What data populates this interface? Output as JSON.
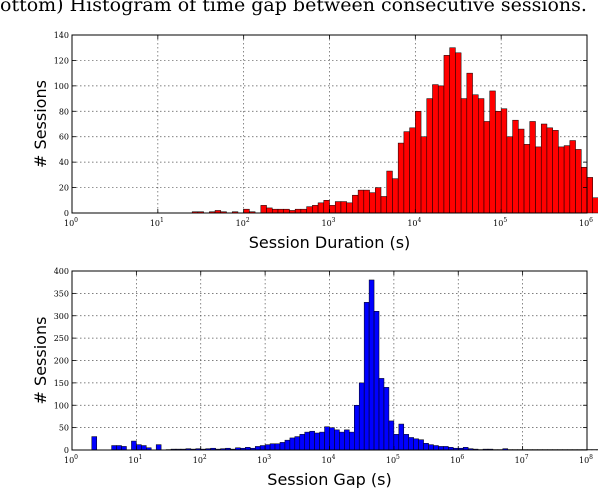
{
  "caption": "ottom) Histogram of time gap between consecutive sessions.",
  "chart_data": [
    {
      "type": "bar",
      "xscale": "log",
      "xlim": [
        1,
        1000000
      ],
      "ylim": [
        0,
        140
      ],
      "yticks": [
        0,
        20,
        40,
        60,
        80,
        100,
        120,
        140
      ],
      "xticks": [
        1,
        10,
        100,
        1000,
        10000,
        100000,
        1000000
      ],
      "xtick_labels": [
        "10",
        "10",
        "10",
        "10",
        "10",
        "10",
        "10"
      ],
      "xtick_exponents": [
        "0",
        "1",
        "2",
        "3",
        "4",
        "5",
        "6"
      ],
      "xlabel": "Session Duration (s)",
      "ylabel": "# Sessions",
      "grid": true,
      "color": "#ff0000",
      "bins_per_decade": 15,
      "values": [
        0,
        0,
        0,
        0,
        0,
        0,
        0,
        0,
        0,
        0,
        0,
        0,
        0,
        0,
        0,
        0,
        0,
        0,
        0,
        0,
        0,
        1,
        1,
        0,
        1,
        2,
        1,
        0,
        1,
        0,
        3,
        1,
        0,
        6,
        4,
        3,
        3,
        3,
        2,
        3,
        3,
        5,
        6,
        8,
        10,
        6,
        9,
        9,
        8,
        14,
        18,
        18,
        16,
        20,
        13,
        33,
        27,
        55,
        64,
        67,
        80,
        60,
        90,
        101,
        100,
        124,
        130,
        126,
        90,
        110,
        93,
        90,
        72,
        96,
        80,
        82,
        60,
        73,
        66,
        54,
        72,
        52,
        70,
        67,
        65,
        52,
        53,
        57,
        50,
        36,
        28,
        12,
        16,
        1,
        5,
        3,
        1,
        0,
        0,
        0,
        0,
        0,
        0,
        0,
        0
      ]
    },
    {
      "type": "bar",
      "xscale": "log",
      "xlim": [
        1,
        100000000
      ],
      "ylim": [
        0,
        400
      ],
      "yticks": [
        0,
        50,
        100,
        150,
        200,
        250,
        300,
        350,
        400
      ],
      "xticks": [
        1,
        10,
        100,
        1000,
        10000,
        100000,
        1000000,
        10000000,
        100000000
      ],
      "xtick_labels": [
        "10",
        "10",
        "10",
        "10",
        "10",
        "10",
        "10",
        "10",
        "10"
      ],
      "xtick_exponents": [
        "0",
        "1",
        "2",
        "3",
        "4",
        "5",
        "6",
        "7",
        "8"
      ],
      "xlabel": "Session Gap (s)",
      "ylabel": "# Sessions",
      "grid": true,
      "color": "#0000ff",
      "bins_per_decade": 13,
      "values": [
        0,
        0,
        0,
        0,
        30,
        0,
        0,
        0,
        10,
        10,
        8,
        0,
        20,
        12,
        10,
        5,
        0,
        12,
        0,
        1,
        2,
        2,
        2,
        3,
        2,
        3,
        2,
        3,
        4,
        2,
        3,
        4,
        2,
        5,
        4,
        6,
        4,
        8,
        10,
        12,
        14,
        14,
        17,
        22,
        27,
        30,
        35,
        40,
        42,
        38,
        40,
        52,
        50,
        45,
        40,
        45,
        40,
        100,
        150,
        330,
        380,
        310,
        160,
        140,
        65,
        35,
        58,
        35,
        28,
        25,
        23,
        15,
        12,
        10,
        8,
        8,
        6,
        4,
        4,
        6,
        3,
        2,
        1,
        2,
        2,
        1,
        1,
        3,
        1,
        1,
        1,
        1,
        1,
        1,
        1,
        1,
        1,
        1,
        1,
        1,
        1,
        1,
        1,
        1,
        1,
        1,
        1,
        1,
        1
      ]
    }
  ]
}
